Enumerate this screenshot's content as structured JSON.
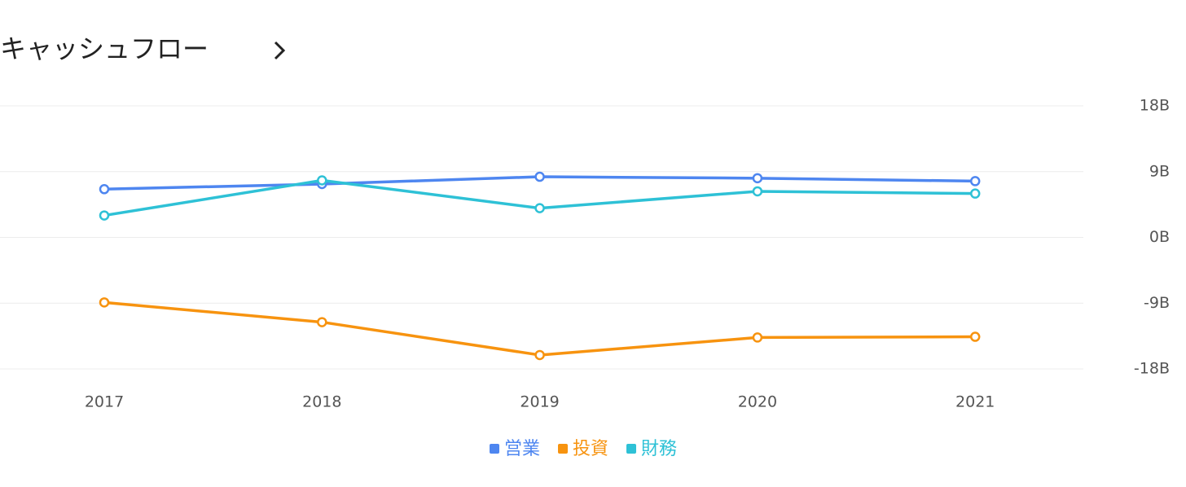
{
  "chart_data": {
    "type": "line",
    "title": "キャッシュフロー",
    "categories": [
      "2017",
      "2018",
      "2019",
      "2020",
      "2021"
    ],
    "series": [
      {
        "name": "営業",
        "color": "#4e86f0",
        "values": [
          6.6,
          7.3,
          8.3,
          8.1,
          7.7
        ]
      },
      {
        "name": "投資",
        "color": "#f7930f",
        "values": [
          -8.9,
          -11.6,
          -16.1,
          -13.7,
          -13.6
        ]
      },
      {
        "name": "財務",
        "color": "#2ec1d6",
        "values": [
          3.0,
          7.8,
          4.0,
          6.3,
          6.0
        ]
      }
    ],
    "ylim": [
      -18,
      18
    ],
    "yticks": [
      {
        "value": 18,
        "label": "18B"
      },
      {
        "value": 9,
        "label": "9B"
      },
      {
        "value": 0,
        "label": "0B"
      },
      {
        "value": -9,
        "label": "-9B"
      },
      {
        "value": -18,
        "label": "-18B"
      }
    ],
    "grid": true,
    "y_axis_side": "right",
    "legend": "bottom"
  }
}
